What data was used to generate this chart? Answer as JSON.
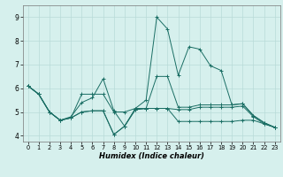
{
  "title": "",
  "xlabel": "Humidex (Indice chaleur)",
  "background_color": "#d6f0ed",
  "grid_color": "#b8dbd8",
  "line_color": "#1a6e64",
  "xlim": [
    -0.5,
    23.5
  ],
  "ylim": [
    3.75,
    9.5
  ],
  "xticks": [
    0,
    1,
    2,
    3,
    4,
    5,
    6,
    7,
    8,
    9,
    10,
    11,
    12,
    13,
    14,
    15,
    16,
    17,
    18,
    19,
    20,
    21,
    22,
    23
  ],
  "yticks": [
    4,
    5,
    6,
    7,
    8,
    9
  ],
  "series": [
    [
      6.1,
      5.75,
      5.0,
      4.65,
      4.75,
      5.75,
      5.75,
      5.75,
      5.0,
      5.0,
      5.15,
      5.15,
      6.5,
      6.5,
      5.2,
      5.2,
      5.3,
      5.3,
      5.3,
      5.3,
      5.35,
      4.85,
      4.55,
      4.35
    ],
    [
      6.1,
      5.75,
      5.0,
      4.65,
      4.8,
      5.4,
      5.6,
      6.4,
      5.05,
      4.4,
      5.15,
      5.5,
      9.0,
      8.5,
      6.55,
      7.75,
      7.65,
      6.95,
      6.75,
      5.3,
      5.35,
      4.85,
      4.55,
      4.35
    ],
    [
      6.1,
      5.75,
      5.0,
      4.65,
      4.75,
      5.0,
      5.05,
      5.05,
      4.05,
      4.4,
      5.1,
      5.15,
      5.15,
      5.15,
      5.1,
      5.1,
      5.2,
      5.2,
      5.2,
      5.2,
      5.25,
      4.8,
      4.5,
      4.35
    ],
    [
      6.1,
      5.75,
      5.0,
      4.65,
      4.75,
      5.0,
      5.05,
      5.05,
      4.05,
      4.4,
      5.1,
      5.15,
      5.15,
      5.15,
      4.6,
      4.6,
      4.6,
      4.6,
      4.6,
      4.6,
      4.65,
      4.65,
      4.5,
      4.35
    ]
  ]
}
